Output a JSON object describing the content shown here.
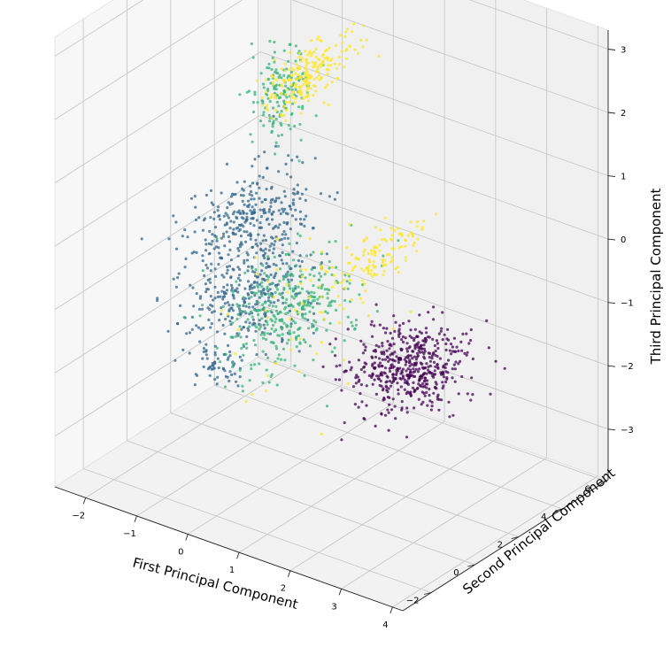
{
  "chart_data": {
    "type": "scatter",
    "projection": "3d",
    "xlabel": "First Principal Component",
    "ylabel": "Second Principal Component",
    "zlabel": "Third Principal Component",
    "xlim": [
      -2.6,
      4.2
    ],
    "ylim": [
      -3.3,
      6.1
    ],
    "zlim": [
      -3.8,
      3.3
    ],
    "x_ticks": [
      "−2",
      "−1",
      "0",
      "1",
      "2",
      "3",
      "4"
    ],
    "y_ticks": [
      "−2",
      "0",
      "2",
      "4",
      "6"
    ],
    "z_ticks": [
      "−3",
      "−2",
      "−1",
      "0",
      "1",
      "2",
      "3"
    ],
    "grid": true,
    "legend": "none",
    "colors": {
      "cluster_0": "#440154",
      "cluster_1": "#31688e",
      "cluster_2": "#35b779",
      "cluster_3": "#fde725"
    },
    "clusters": [
      {
        "color_key": "cluster_0",
        "center": [
          3.6,
          -1.6,
          -0.5
        ],
        "spread": [
          0.45,
          0.9,
          0.25
        ],
        "count": 520
      },
      {
        "color_key": "cluster_1",
        "center": [
          -0.9,
          1.7,
          -0.2
        ],
        "spread": [
          0.4,
          1.3,
          0.3
        ],
        "count": 340
      },
      {
        "color_key": "cluster_1",
        "center": [
          -0.5,
          0.7,
          -1.1
        ],
        "spread": [
          0.45,
          1.1,
          0.3
        ],
        "count": 300
      },
      {
        "color_key": "cluster_1",
        "center": [
          -0.9,
          0.3,
          -2.2
        ],
        "spread": [
          0.2,
          0.3,
          0.12
        ],
        "count": 50
      },
      {
        "color_key": "cluster_2",
        "center": [
          -0.4,
          2.0,
          1.9
        ],
        "spread": [
          0.15,
          0.6,
          0.35
        ],
        "count": 160
      },
      {
        "color_key": "cluster_2",
        "center": [
          0.0,
          1.3,
          -1.3
        ],
        "spread": [
          0.4,
          1.3,
          0.35
        ],
        "count": 340
      },
      {
        "color_key": "cluster_3",
        "center": [
          -0.3,
          2.8,
          2.0
        ],
        "spread": [
          0.12,
          1.0,
          0.2
        ],
        "count": 220
      },
      {
        "color_key": "cluster_3",
        "center": [
          0.4,
          4.4,
          -1.0
        ],
        "spread": [
          0.15,
          1.0,
          0.18
        ],
        "count": 120
      },
      {
        "color_key": "cluster_3",
        "center": [
          1.0,
          0.2,
          -0.7
        ],
        "spread": [
          0.5,
          1.3,
          0.6
        ],
        "count": 60
      }
    ]
  }
}
